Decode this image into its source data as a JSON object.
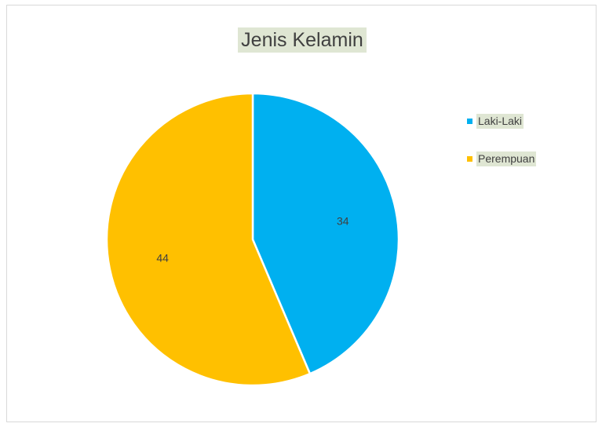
{
  "chart_data": {
    "type": "pie",
    "title": "Jenis Kelamin",
    "categories": [
      "Laki-Laki",
      "Perempuan"
    ],
    "values": [
      34,
      44
    ],
    "colors": [
      "#00b0f0",
      "#ffc000"
    ],
    "data_labels": [
      "34",
      "44"
    ],
    "legend_position": "right",
    "start_angle": "top",
    "direction": "clockwise"
  }
}
